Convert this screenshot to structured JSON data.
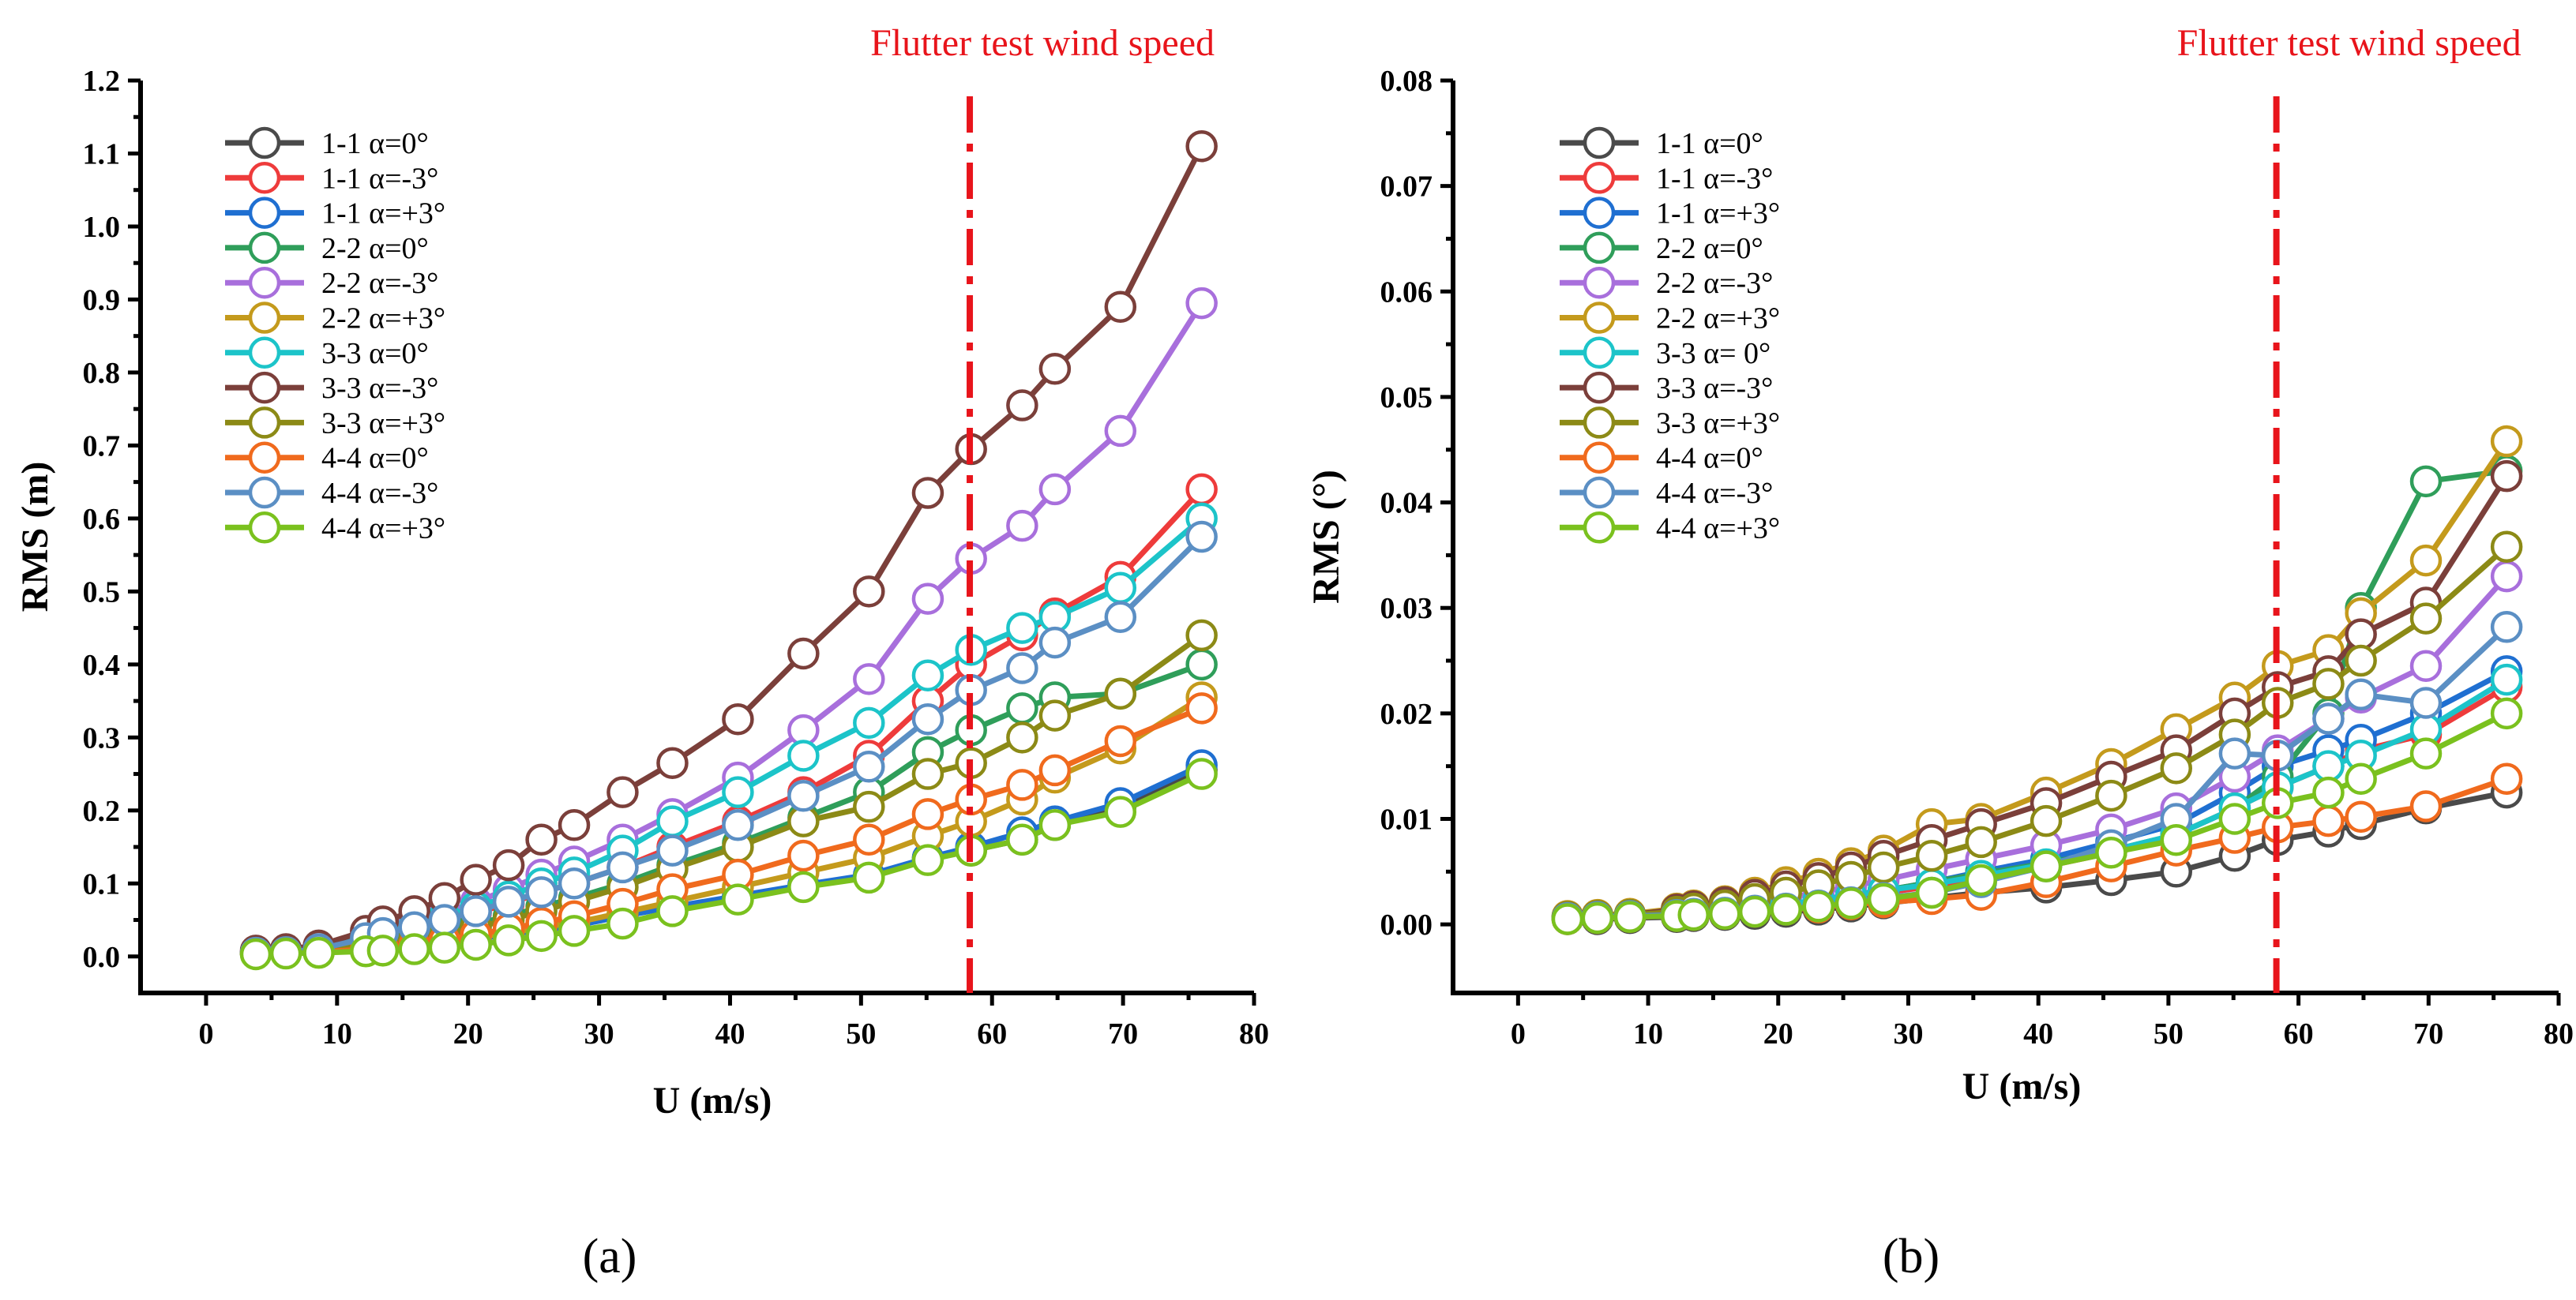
{
  "chart_data": [
    {
      "type": "line",
      "panel_label": "(a)",
      "xlabel": "U (m/s)",
      "ylabel": "RMS (m)",
      "xlim": [
        -5,
        80
      ],
      "ylim": [
        -0.05,
        1.2
      ],
      "xticks": [
        0,
        10,
        20,
        30,
        40,
        50,
        60,
        70,
        80
      ],
      "yticks": [
        0.0,
        0.1,
        0.2,
        0.3,
        0.4,
        0.5,
        0.6,
        0.7,
        0.8,
        0.9,
        1.0,
        1.1,
        1.2
      ],
      "ytick_decimals": 1,
      "annotation": {
        "text": "Flutter test wind speed",
        "x": 58.3,
        "color": "#e8141b"
      },
      "legend_position": "top-left",
      "grid": false,
      "x": [
        3.8,
        6.1,
        8.6,
        12.2,
        13.5,
        15.9,
        18.2,
        20.6,
        23.1,
        25.6,
        28.1,
        31.8,
        35.6,
        40.6,
        45.6,
        50.6,
        55.1,
        58.4,
        62.3,
        64.8,
        69.8,
        76.0
      ],
      "series": [
        {
          "name": "1-1 α=0°",
          "color": "#4a4a4a",
          "values": [
            0.005,
            0.005,
            0.006,
            0.01,
            0.012,
            0.016,
            0.02,
            0.027,
            0.034,
            0.04,
            0.046,
            0.057,
            0.068,
            0.082,
            0.097,
            0.11,
            0.135,
            0.145,
            0.16,
            0.18,
            0.205,
            0.255
          ]
        },
        {
          "name": "1-1 α=-3°",
          "color": "#ee3b3b",
          "values": [
            0.005,
            0.006,
            0.01,
            0.022,
            0.03,
            0.038,
            0.048,
            0.06,
            0.072,
            0.088,
            0.1,
            0.122,
            0.15,
            0.185,
            0.225,
            0.275,
            0.35,
            0.4,
            0.44,
            0.47,
            0.52,
            0.64
          ]
        },
        {
          "name": "1-1 α=+3°",
          "color": "#1f6fd1",
          "values": [
            0.004,
            0.005,
            0.006,
            0.008,
            0.01,
            0.014,
            0.018,
            0.024,
            0.03,
            0.036,
            0.042,
            0.055,
            0.068,
            0.083,
            0.098,
            0.112,
            0.135,
            0.15,
            0.17,
            0.185,
            0.21,
            0.262
          ]
        },
        {
          "name": "2-2 α=0°",
          "color": "#2f9e5a",
          "values": [
            0.005,
            0.006,
            0.009,
            0.016,
            0.02,
            0.026,
            0.035,
            0.045,
            0.055,
            0.068,
            0.08,
            0.1,
            0.125,
            0.155,
            0.19,
            0.225,
            0.28,
            0.31,
            0.34,
            0.355,
            0.36,
            0.4
          ]
        },
        {
          "name": "2-2 α=-3°",
          "color": "#a86fdc",
          "values": [
            0.006,
            0.008,
            0.012,
            0.03,
            0.038,
            0.048,
            0.06,
            0.075,
            0.092,
            0.112,
            0.13,
            0.16,
            0.195,
            0.245,
            0.31,
            0.38,
            0.49,
            0.545,
            0.59,
            0.64,
            0.72,
            0.895
          ]
        },
        {
          "name": "2-2 α=+3°",
          "color": "#c49a1c",
          "values": [
            0.004,
            0.005,
            0.006,
            0.01,
            0.012,
            0.016,
            0.02,
            0.026,
            0.032,
            0.04,
            0.046,
            0.06,
            0.075,
            0.095,
            0.115,
            0.135,
            0.165,
            0.185,
            0.215,
            0.245,
            0.285,
            0.355
          ]
        },
        {
          "name": "3-3 α=0°",
          "color": "#1cc4c9",
          "values": [
            0.005,
            0.007,
            0.011,
            0.028,
            0.034,
            0.042,
            0.055,
            0.068,
            0.082,
            0.1,
            0.115,
            0.145,
            0.185,
            0.225,
            0.275,
            0.32,
            0.385,
            0.42,
            0.45,
            0.465,
            0.505,
            0.6
          ]
        },
        {
          "name": "3-3 α=-3°",
          "color": "#7b3f3a",
          "values": [
            0.008,
            0.01,
            0.015,
            0.035,
            0.048,
            0.062,
            0.08,
            0.105,
            0.125,
            0.16,
            0.18,
            0.225,
            0.265,
            0.325,
            0.415,
            0.5,
            0.635,
            0.695,
            0.755,
            0.805,
            0.89,
            1.11
          ]
        },
        {
          "name": "3-3 α=+3°",
          "color": "#8c8a16",
          "values": [
            0.005,
            0.006,
            0.008,
            0.014,
            0.018,
            0.024,
            0.03,
            0.04,
            0.05,
            0.062,
            0.075,
            0.095,
            0.12,
            0.15,
            0.185,
            0.205,
            0.25,
            0.265,
            0.3,
            0.33,
            0.36,
            0.44
          ]
        },
        {
          "name": "4-4 α=0°",
          "color": "#f06a1d",
          "values": [
            0.004,
            0.005,
            0.006,
            0.01,
            0.012,
            0.016,
            0.022,
            0.03,
            0.038,
            0.046,
            0.055,
            0.072,
            0.092,
            0.112,
            0.138,
            0.16,
            0.195,
            0.215,
            0.235,
            0.255,
            0.295,
            0.34
          ]
        },
        {
          "name": "4-4 α=-3°",
          "color": "#5b8fc4",
          "values": [
            0.005,
            0.006,
            0.01,
            0.025,
            0.032,
            0.04,
            0.05,
            0.062,
            0.075,
            0.088,
            0.1,
            0.122,
            0.145,
            0.18,
            0.22,
            0.26,
            0.325,
            0.365,
            0.395,
            0.43,
            0.465,
            0.575
          ]
        },
        {
          "name": "4-4 α=+3°",
          "color": "#7ac11e",
          "values": [
            0.003,
            0.004,
            0.005,
            0.007,
            0.008,
            0.01,
            0.012,
            0.016,
            0.022,
            0.028,
            0.035,
            0.045,
            0.062,
            0.078,
            0.095,
            0.108,
            0.132,
            0.145,
            0.16,
            0.18,
            0.198,
            0.25
          ]
        }
      ]
    },
    {
      "type": "line",
      "panel_label": "(b)",
      "xlabel": "U (m/s)",
      "ylabel": "RMS (°)",
      "xlim": [
        -5,
        80
      ],
      "ylim": [
        -0.0065,
        0.08
      ],
      "xticks": [
        0,
        10,
        20,
        30,
        40,
        50,
        60,
        70,
        80
      ],
      "yticks": [
        0.0,
        0.01,
        0.02,
        0.03,
        0.04,
        0.05,
        0.06,
        0.07,
        0.08
      ],
      "ytick_decimals": 2,
      "annotation": {
        "text": "Flutter test wind speed",
        "x": 58.3,
        "color": "#e8141b"
      },
      "legend_position": "top-left",
      "grid": false,
      "x": [
        3.8,
        6.1,
        8.6,
        12.2,
        13.5,
        15.9,
        18.2,
        20.6,
        23.1,
        25.6,
        28.1,
        31.8,
        35.6,
        40.6,
        45.6,
        50.6,
        55.1,
        58.4,
        62.3,
        64.8,
        69.8,
        76.0
      ],
      "series": [
        {
          "name": "1-1 α=0°",
          "color": "#4a4a4a",
          "values": [
            0.0005,
            0.0005,
            0.0006,
            0.0007,
            0.0008,
            0.0009,
            0.001,
            0.0012,
            0.0014,
            0.0017,
            0.002,
            0.0025,
            0.003,
            0.0035,
            0.0042,
            0.005,
            0.0065,
            0.008,
            0.0088,
            0.0095,
            0.011,
            0.0125
          ]
        },
        {
          "name": "1-1 α=-3°",
          "color": "#ee3b3b",
          "values": [
            0.0006,
            0.0007,
            0.0008,
            0.0009,
            0.001,
            0.0012,
            0.0015,
            0.0018,
            0.0022,
            0.0026,
            0.003,
            0.0036,
            0.0045,
            0.0055,
            0.0068,
            0.0085,
            0.011,
            0.013,
            0.015,
            0.0165,
            0.018,
            0.0225
          ]
        },
        {
          "name": "1-1 α=+3°",
          "color": "#1f6fd1",
          "values": [
            0.0006,
            0.0007,
            0.0008,
            0.0009,
            0.0011,
            0.0013,
            0.0016,
            0.0019,
            0.0023,
            0.0028,
            0.0032,
            0.004,
            0.005,
            0.0062,
            0.0078,
            0.0095,
            0.0125,
            0.015,
            0.0165,
            0.0175,
            0.02,
            0.024
          ]
        },
        {
          "name": "2-2 α=0°",
          "color": "#2f9e5a",
          "values": [
            0.0006,
            0.0007,
            0.0008,
            0.0009,
            0.001,
            0.0012,
            0.0015,
            0.0018,
            0.0022,
            0.0027,
            0.0032,
            0.004,
            0.0048,
            0.0058,
            0.007,
            0.0085,
            0.011,
            0.014,
            0.02,
            0.03,
            0.042,
            0.043
          ]
        },
        {
          "name": "2-2 α=-3°",
          "color": "#a86fdc",
          "values": [
            0.0007,
            0.0008,
            0.0009,
            0.001,
            0.0013,
            0.0016,
            0.002,
            0.0025,
            0.003,
            0.0036,
            0.0042,
            0.0052,
            0.0062,
            0.0075,
            0.009,
            0.011,
            0.014,
            0.0165,
            0.0195,
            0.0215,
            0.0245,
            0.033
          ]
        },
        {
          "name": "2-2 α=+3°",
          "color": "#c49a1c",
          "values": [
            0.0008,
            0.0009,
            0.001,
            0.0015,
            0.0018,
            0.0022,
            0.003,
            0.004,
            0.0048,
            0.0058,
            0.007,
            0.0095,
            0.01,
            0.0125,
            0.0152,
            0.0185,
            0.0215,
            0.0245,
            0.026,
            0.0295,
            0.0345,
            0.0458
          ]
        },
        {
          "name": "3-3 α= 0°",
          "color": "#1cc4c9",
          "values": [
            0.0006,
            0.0007,
            0.0008,
            0.0009,
            0.0011,
            0.0013,
            0.0016,
            0.0019,
            0.0023,
            0.0027,
            0.0032,
            0.0038,
            0.0046,
            0.0057,
            0.007,
            0.0085,
            0.011,
            0.013,
            0.015,
            0.016,
            0.0185,
            0.0232
          ]
        },
        {
          "name": "3-3 α=-3°",
          "color": "#7b3f3a",
          "values": [
            0.0007,
            0.0008,
            0.0009,
            0.0014,
            0.0017,
            0.0021,
            0.0028,
            0.0036,
            0.0044,
            0.0054,
            0.0065,
            0.008,
            0.0095,
            0.0115,
            0.014,
            0.0165,
            0.02,
            0.0225,
            0.024,
            0.0275,
            0.0305,
            0.0425
          ]
        },
        {
          "name": "3-3 α=+3°",
          "color": "#8c8a16",
          "values": [
            0.0007,
            0.0008,
            0.0009,
            0.0012,
            0.0015,
            0.0018,
            0.0024,
            0.003,
            0.0037,
            0.0045,
            0.0054,
            0.0065,
            0.0078,
            0.0098,
            0.0122,
            0.0148,
            0.018,
            0.021,
            0.0228,
            0.025,
            0.029,
            0.0358
          ]
        },
        {
          "name": "4-4 α=0°",
          "color": "#f06a1d",
          "values": [
            0.0005,
            0.0006,
            0.0007,
            0.0008,
            0.0009,
            0.001,
            0.0012,
            0.0014,
            0.0016,
            0.0019,
            0.0021,
            0.0024,
            0.0028,
            0.004,
            0.0055,
            0.007,
            0.0082,
            0.0092,
            0.0098,
            0.0102,
            0.0112,
            0.0138
          ]
        },
        {
          "name": "4-4 α=-3°",
          "color": "#5b8fc4",
          "values": [
            0.0006,
            0.0007,
            0.0008,
            0.0009,
            0.001,
            0.0011,
            0.0013,
            0.0015,
            0.0018,
            0.0021,
            0.0025,
            0.003,
            0.004,
            0.0055,
            0.0075,
            0.01,
            0.0162,
            0.016,
            0.0195,
            0.0218,
            0.021,
            0.0282
          ]
        },
        {
          "name": "4-4 α=+3°",
          "color": "#7ac11e",
          "values": [
            0.0005,
            0.0006,
            0.0007,
            0.0008,
            0.0009,
            0.001,
            0.0012,
            0.0014,
            0.0017,
            0.002,
            0.0024,
            0.003,
            0.0042,
            0.0055,
            0.0068,
            0.008,
            0.01,
            0.0115,
            0.0125,
            0.0138,
            0.0162,
            0.02
          ]
        }
      ]
    }
  ]
}
